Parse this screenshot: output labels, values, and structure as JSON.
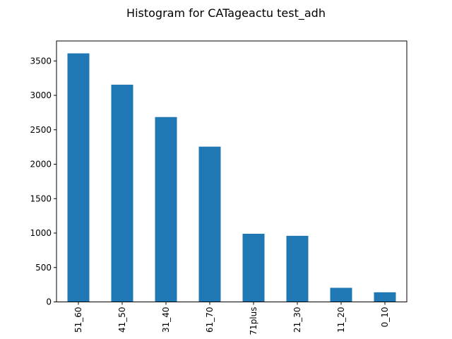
{
  "chart_data": {
    "type": "bar",
    "title": "Histogram for CATageactu test_adh",
    "categories": [
      "51_60",
      "41_50",
      "31_40",
      "61_70",
      "71plus",
      "21_30",
      "11_20",
      "0_10"
    ],
    "values": [
      3610,
      3155,
      2685,
      2255,
      990,
      960,
      205,
      140
    ],
    "ylim": [
      0,
      3790
    ],
    "yticks": [
      0,
      500,
      1000,
      1500,
      2000,
      2500,
      3000,
      3500
    ],
    "ytick_labels": [
      "0",
      "500",
      "1000",
      "1500",
      "2000",
      "2500",
      "3000",
      "3500"
    ],
    "grid": false,
    "bar_color": "#1f77b4"
  }
}
